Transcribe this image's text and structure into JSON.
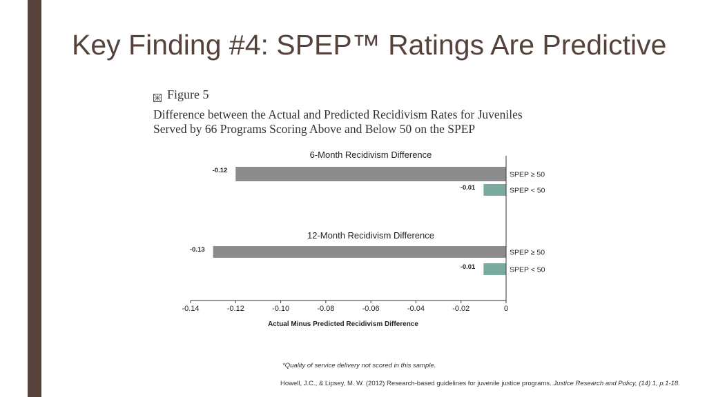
{
  "slide": {
    "title": "Key Finding #4: SPEP™ Ratings Are Predictive"
  },
  "figure": {
    "label": "Figure 5",
    "caption_line1": "Difference between the Actual and Predicted Recidivism Rates for Juveniles",
    "caption_line2": "Served by 66 Programs Scoring Above and Below 50 on the SPEP"
  },
  "chart_data": {
    "type": "bar",
    "orientation": "horizontal",
    "xlabel": "Actual Minus Predicted Recidivism Difference",
    "xlim": [
      -0.14,
      0
    ],
    "x_ticks": [
      -0.14,
      -0.12,
      -0.1,
      -0.08,
      -0.06,
      -0.04,
      -0.02,
      0
    ],
    "x_tick_labels": [
      "-0.14",
      "-0.12",
      "-0.10",
      "-0.08",
      "-0.06",
      "-0.04",
      "-0.02",
      "0"
    ],
    "colors": {
      "spep_ge_50": "#8c8c8f",
      "spep_lt_50": "#7aab9e"
    },
    "groups": [
      {
        "title": "6-Month Recidivism Difference",
        "bars": [
          {
            "label": "SPEP ≥ 50",
            "value": -0.12,
            "value_label": "-0.12"
          },
          {
            "label": "SPEP < 50",
            "value": -0.01,
            "value_label": "-0.01"
          }
        ]
      },
      {
        "title": "12-Month Recidivism Difference",
        "bars": [
          {
            "label": "SPEP ≥ 50",
            "value": -0.13,
            "value_label": "-0.13"
          },
          {
            "label": "SPEP < 50",
            "value": -0.01,
            "value_label": "-0.01"
          }
        ]
      }
    ]
  },
  "footer": {
    "footnote": "*Quality of service delivery not scored in this sample.",
    "citation_plain": "Howell, J.C., & Lipsey, M. W. (2012) Research-based guidelines for juvenile justice programs. ",
    "citation_italic": "Justice Research and Policy, (14) 1, p.1-18."
  }
}
